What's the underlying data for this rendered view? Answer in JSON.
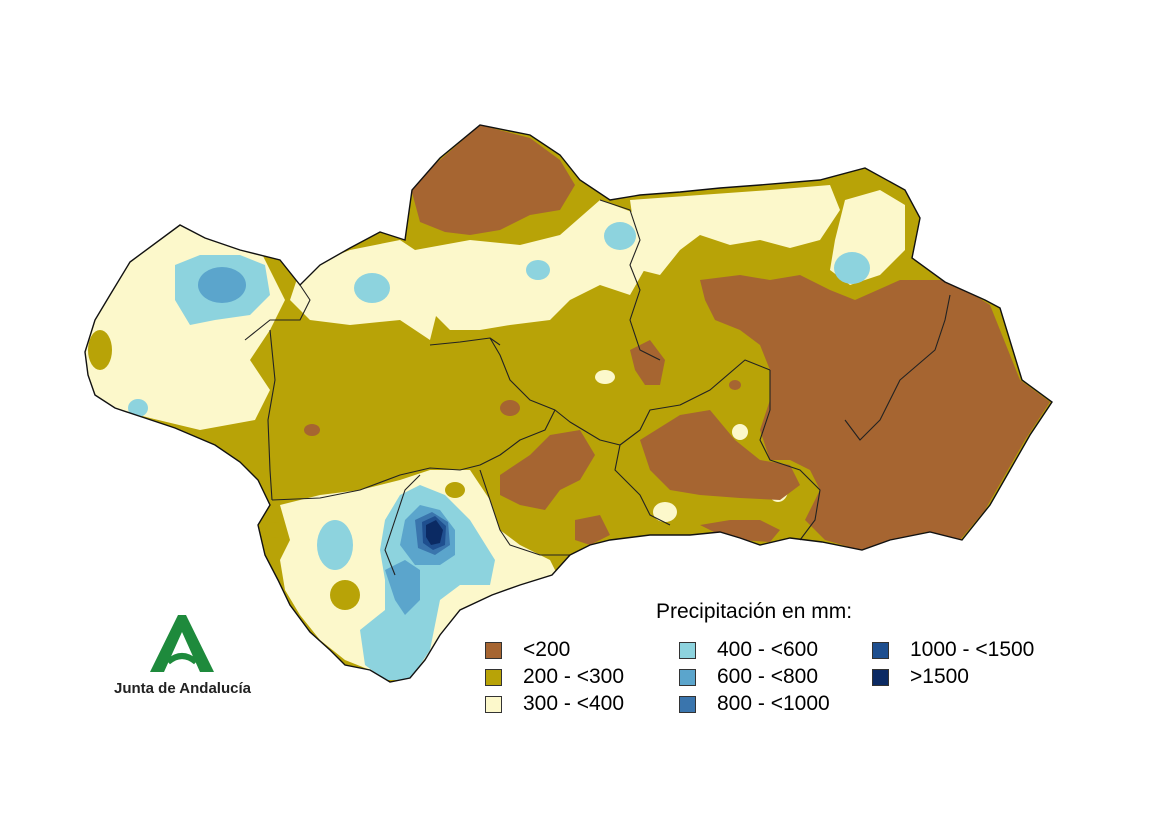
{
  "legend": {
    "title": "Precipitación en mm:",
    "items": [
      {
        "label": "<200",
        "color": "#a66531"
      },
      {
        "label": "200 - <300",
        "color": "#b8a307"
      },
      {
        "label": "300 - <400",
        "color": "#fcf8cb"
      },
      {
        "label": "400 - <600",
        "color": "#8dd3de"
      },
      {
        "label": "600 - <800",
        "color": "#5ba5cc"
      },
      {
        "label": "800 - <1000",
        "color": "#3a75ad"
      },
      {
        "label": "1000 - <1500",
        "color": "#1f4f8f"
      },
      {
        "label": ">1500",
        "color": "#0b2a63"
      }
    ]
  },
  "logo": {
    "text": "Junta de Andalucía",
    "color": "#1e8a3c"
  }
}
